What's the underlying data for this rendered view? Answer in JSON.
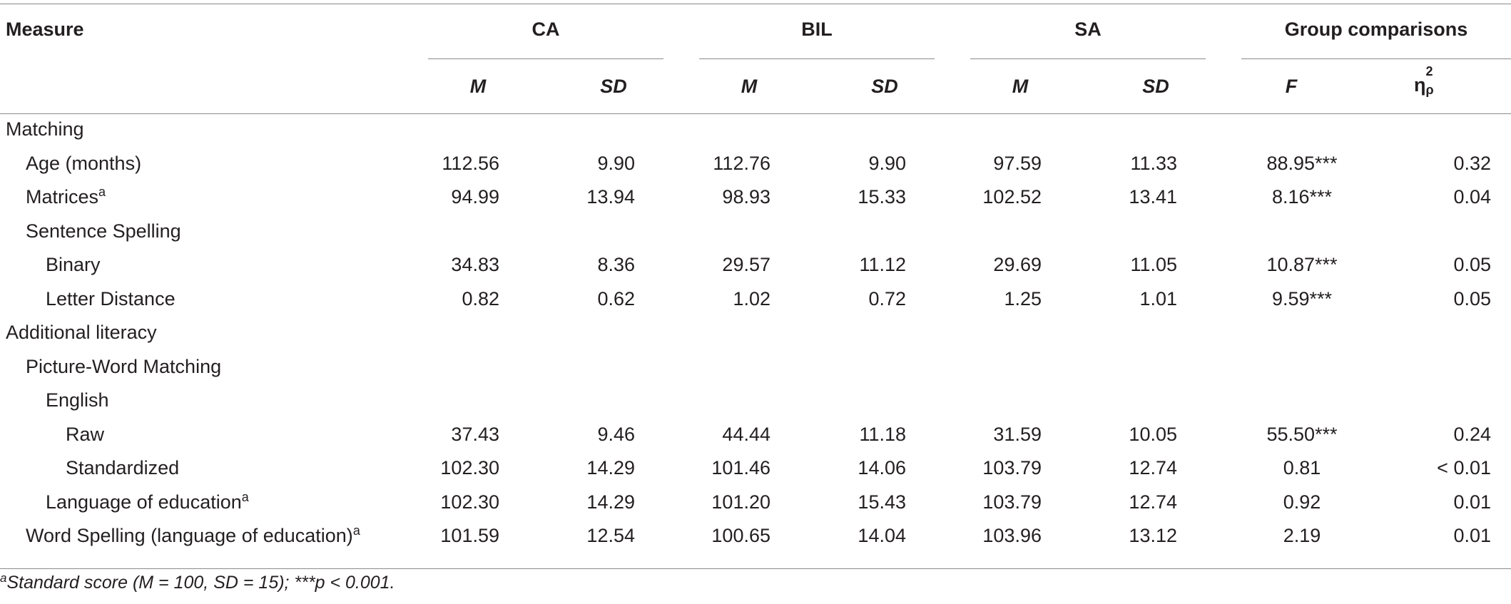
{
  "header": {
    "measure": "Measure",
    "groups": [
      "CA",
      "BIL",
      "SA",
      "Group comparisons"
    ],
    "subcols": [
      "M",
      "SD",
      "M",
      "SD",
      "M",
      "SD",
      "F",
      "η",
      "2",
      "ρ"
    ]
  },
  "rows": [
    {
      "label": "Matching",
      "level": 0,
      "sup": "",
      "values": [
        "",
        "",
        "",
        "",
        "",
        "",
        "",
        ""
      ]
    },
    {
      "label": "Age (months)",
      "level": 1,
      "sup": "",
      "values": [
        "112.56",
        "9.90",
        "112.76",
        "9.90",
        "97.59",
        "11.33",
        "88.95***",
        "0.32"
      ]
    },
    {
      "label": "Matrices",
      "level": 1,
      "sup": "a",
      "values": [
        "94.99",
        "13.94",
        "98.93",
        "15.33",
        "102.52",
        "13.41",
        "8.16***",
        "0.04"
      ]
    },
    {
      "label": "Sentence Spelling",
      "level": 1,
      "sup": "",
      "values": [
        "",
        "",
        "",
        "",
        "",
        "",
        "",
        ""
      ]
    },
    {
      "label": "Binary",
      "level": 2,
      "sup": "",
      "values": [
        "34.83",
        "8.36",
        "29.57",
        "11.12",
        "29.69",
        "11.05",
        "10.87***",
        "0.05"
      ]
    },
    {
      "label": "Letter Distance",
      "level": 2,
      "sup": "",
      "values": [
        "0.82",
        "0.62",
        "1.02",
        "0.72",
        "1.25",
        "1.01",
        "9.59***",
        "0.05"
      ]
    },
    {
      "label": "Additional literacy",
      "level": 0,
      "sup": "",
      "values": [
        "",
        "",
        "",
        "",
        "",
        "",
        "",
        ""
      ]
    },
    {
      "label": "Picture-Word Matching",
      "level": 1,
      "sup": "",
      "values": [
        "",
        "",
        "",
        "",
        "",
        "",
        "",
        ""
      ]
    },
    {
      "label": "English",
      "level": 2,
      "sup": "",
      "values": [
        "",
        "",
        "",
        "",
        "",
        "",
        "",
        ""
      ]
    },
    {
      "label": "Raw",
      "level": 3,
      "sup": "",
      "values": [
        "37.43",
        "9.46",
        "44.44",
        "11.18",
        "31.59",
        "10.05",
        "55.50***",
        "0.24"
      ]
    },
    {
      "label": "Standardized",
      "level": 3,
      "sup": "",
      "values": [
        "102.30",
        "14.29",
        "101.46",
        "14.06",
        "103.79",
        "12.74",
        "0.81",
        "< 0.01"
      ]
    },
    {
      "label": "Language of education",
      "level": 2,
      "sup": "a",
      "values": [
        "102.30",
        "14.29",
        "101.20",
        "15.43",
        "103.79",
        "12.74",
        "0.92",
        "0.01"
      ]
    },
    {
      "label": "Word Spelling (language of education)",
      "level": 1,
      "sup": "a",
      "values": [
        "101.59",
        "12.54",
        "100.65",
        "14.04",
        "103.96",
        "13.12",
        "2.19",
        "0.01"
      ]
    }
  ],
  "footnote": {
    "sup": "a",
    "text": "Standard score (M = 100, SD = 15); ***p < 0.001."
  }
}
